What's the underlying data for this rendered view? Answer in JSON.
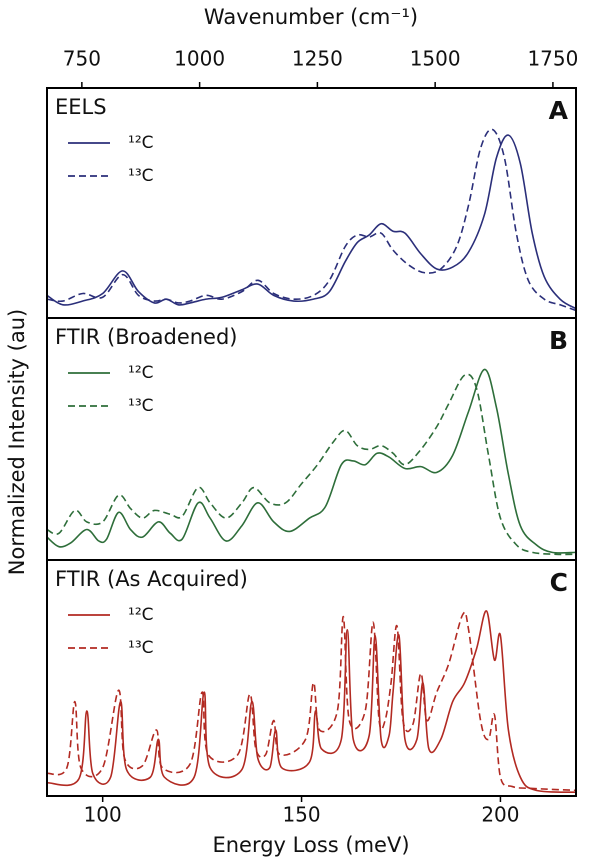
{
  "chart_data": [
    {
      "type": "line",
      "label": "EELS",
      "panel": "A",
      "x2label": "Wavenumber (cm⁻¹)",
      "x2lim": [
        676,
        1799
      ],
      "x2ticks": [
        750,
        1000,
        1250,
        1500,
        1750
      ],
      "ylabel": "Normalized Intensity (au)",
      "xlim": [
        86,
        219
      ],
      "ylim": [
        0,
        1.22
      ],
      "series": [
        {
          "name": "¹²C",
          "color": "#2b2f7a",
          "linestyle": "solid",
          "x": [
            86,
            90,
            95,
            100,
            105,
            109,
            113,
            116,
            119,
            122,
            126,
            130,
            135,
            139,
            143,
            148,
            153,
            157,
            161,
            164,
            167,
            170,
            173,
            176,
            180,
            184,
            188,
            192,
            196,
            199,
            202,
            205,
            208,
            211,
            215,
            219
          ],
          "values": [
            0.12,
            0.07,
            0.09,
            0.13,
            0.25,
            0.14,
            0.08,
            0.1,
            0.07,
            0.08,
            0.1,
            0.11,
            0.15,
            0.18,
            0.12,
            0.09,
            0.1,
            0.14,
            0.3,
            0.4,
            0.44,
            0.5,
            0.46,
            0.45,
            0.34,
            0.26,
            0.27,
            0.35,
            0.55,
            0.85,
            0.97,
            0.82,
            0.45,
            0.22,
            0.1,
            0.05
          ]
        },
        {
          "name": "¹³C",
          "color": "#2b2f7a",
          "linestyle": "dashed",
          "x": [
            86,
            90,
            95,
            100,
            105,
            109,
            113,
            116,
            119,
            122,
            126,
            130,
            135,
            139,
            143,
            148,
            153,
            157,
            161,
            164,
            167,
            170,
            173,
            177,
            181,
            185,
            189,
            192,
            195,
            198,
            201,
            204,
            207,
            211,
            215,
            219
          ],
          "values": [
            0.1,
            0.09,
            0.13,
            0.11,
            0.23,
            0.12,
            0.09,
            0.1,
            0.08,
            0.09,
            0.12,
            0.1,
            0.14,
            0.2,
            0.13,
            0.1,
            0.12,
            0.2,
            0.38,
            0.44,
            0.43,
            0.45,
            0.36,
            0.28,
            0.24,
            0.26,
            0.38,
            0.6,
            0.9,
            1.0,
            0.85,
            0.45,
            0.2,
            0.1,
            0.07,
            0.04
          ]
        }
      ]
    },
    {
      "type": "line",
      "label": "FTIR (Broadened)",
      "panel": "B",
      "xlim": [
        86,
        219
      ],
      "ylim": [
        0,
        1.27
      ],
      "series": [
        {
          "name": "¹²C",
          "color": "#2e6e3a",
          "linestyle": "solid",
          "x": [
            86,
            89,
            92,
            96,
            99,
            101,
            104,
            107,
            110,
            114,
            117,
            120,
            124,
            127,
            131,
            135,
            139,
            143,
            147,
            152,
            156,
            160,
            163,
            166,
            169,
            172,
            176,
            180,
            184,
            188,
            192,
            196,
            199,
            202,
            205,
            209,
            213,
            219
          ],
          "values": [
            0.12,
            0.07,
            0.09,
            0.16,
            0.1,
            0.11,
            0.25,
            0.16,
            0.12,
            0.2,
            0.14,
            0.11,
            0.3,
            0.22,
            0.1,
            0.18,
            0.3,
            0.2,
            0.15,
            0.22,
            0.28,
            0.5,
            0.52,
            0.5,
            0.56,
            0.54,
            0.48,
            0.49,
            0.46,
            0.55,
            0.78,
            1.0,
            0.8,
            0.45,
            0.18,
            0.08,
            0.04,
            0.04
          ]
        },
        {
          "name": "¹³C",
          "color": "#2e6e3a",
          "linestyle": "dashed",
          "x": [
            86,
            89,
            93,
            96,
            100,
            104,
            107,
            110,
            113,
            117,
            120,
            124,
            127,
            131,
            135,
            138,
            142,
            146,
            150,
            154,
            158,
            161,
            164,
            167,
            170,
            173,
            176,
            180,
            184,
            187,
            191,
            194,
            197,
            200,
            204,
            208,
            214,
            219
          ],
          "values": [
            0.16,
            0.14,
            0.26,
            0.2,
            0.2,
            0.34,
            0.27,
            0.22,
            0.26,
            0.24,
            0.23,
            0.38,
            0.3,
            0.22,
            0.3,
            0.38,
            0.3,
            0.3,
            0.4,
            0.5,
            0.62,
            0.68,
            0.6,
            0.58,
            0.6,
            0.56,
            0.5,
            0.58,
            0.7,
            0.82,
            0.97,
            0.9,
            0.55,
            0.22,
            0.08,
            0.04,
            0.03,
            0.03
          ]
        }
      ]
    },
    {
      "type": "line",
      "label": "FTIR (As Acquired)",
      "panel": "C",
      "xlabel": "Energy Loss (meV)",
      "xlim": [
        86,
        219
      ],
      "xticks": [
        100,
        150,
        200
      ],
      "ylim": [
        0,
        1.25
      ],
      "series": [
        {
          "name": "¹²C",
          "color": "#b22a22",
          "linestyle": "solid",
          "x": [
            86,
            94,
            96,
            97.5,
            102,
            104.5,
            106,
            112,
            114,
            115.5,
            123,
            125.5,
            127,
            135,
            137.5,
            139,
            142,
            143.5,
            145,
            152,
            153.5,
            155,
            160,
            161.5,
            163,
            167,
            168.5,
            170,
            172,
            173,
            174.5,
            176,
            179,
            180.5,
            182,
            185,
            188,
            191,
            194,
            196.5,
            198.5,
            200,
            202,
            205,
            209,
            219
          ],
          "values": [
            0.07,
            0.09,
            0.45,
            0.12,
            0.1,
            0.5,
            0.14,
            0.1,
            0.3,
            0.1,
            0.1,
            0.55,
            0.15,
            0.14,
            0.5,
            0.2,
            0.15,
            0.35,
            0.15,
            0.18,
            0.45,
            0.25,
            0.3,
            0.88,
            0.3,
            0.32,
            0.85,
            0.3,
            0.32,
            0.55,
            0.85,
            0.3,
            0.3,
            0.6,
            0.25,
            0.3,
            0.5,
            0.6,
            0.78,
            0.98,
            0.72,
            0.85,
            0.35,
            0.1,
            0.03,
            0.02
          ]
        },
        {
          "name": "¹³C",
          "color": "#b22a22",
          "linestyle": "dashed",
          "x": [
            86,
            91,
            93,
            94.5,
            100,
            104,
            105.5,
            110,
            113.5,
            115,
            122,
            125,
            126.5,
            134,
            137,
            138.5,
            141,
            143,
            144.5,
            151,
            153,
            154.5,
            159,
            160.5,
            162,
            166,
            168,
            169.5,
            171,
            172.5,
            174,
            175.5,
            178,
            180,
            181.5,
            184,
            187,
            190.5,
            192,
            195,
            197,
            198.5,
            200,
            203,
            208,
            219
          ],
          "values": [
            0.12,
            0.15,
            0.5,
            0.15,
            0.15,
            0.56,
            0.2,
            0.16,
            0.35,
            0.15,
            0.17,
            0.55,
            0.22,
            0.22,
            0.54,
            0.25,
            0.22,
            0.4,
            0.22,
            0.3,
            0.6,
            0.35,
            0.45,
            0.95,
            0.4,
            0.45,
            0.92,
            0.4,
            0.4,
            0.6,
            0.9,
            0.4,
            0.38,
            0.65,
            0.4,
            0.55,
            0.7,
            0.96,
            0.88,
            0.4,
            0.3,
            0.43,
            0.1,
            0.05,
            0.04,
            0.03
          ]
        }
      ]
    }
  ]
}
